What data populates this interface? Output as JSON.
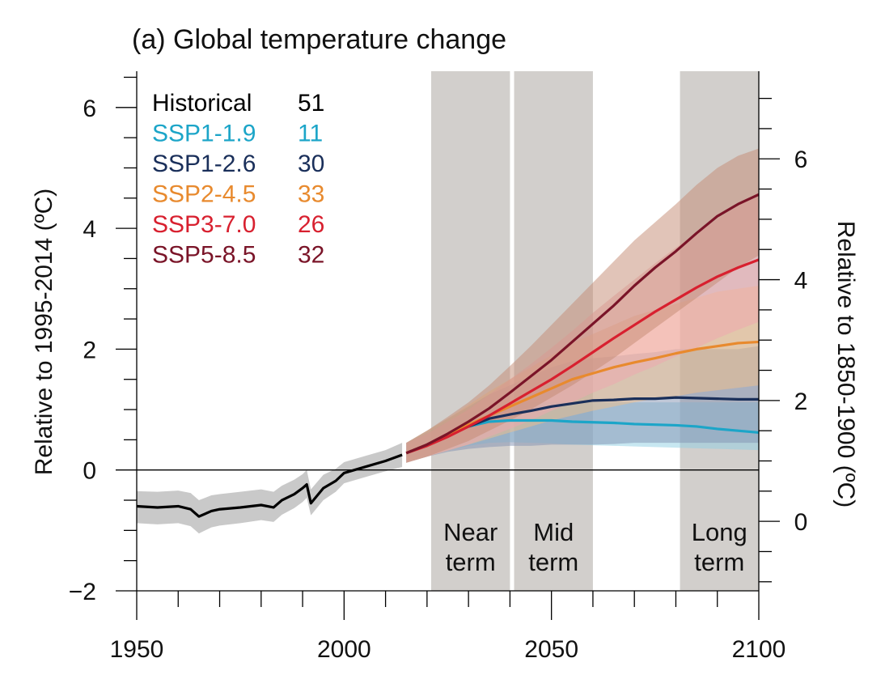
{
  "chart_data": {
    "type": "line",
    "title": "(a) Global temperature change",
    "xlim": [
      1950,
      2100
    ],
    "x_ticks": [
      "1950",
      "2000",
      "2050",
      "2100"
    ],
    "left_axis": {
      "label": "Relative to 1995-2014 (ºC)",
      "ylim": [
        -2,
        6.6
      ],
      "ticks": [
        "−2",
        "0",
        "2",
        "4",
        "6"
      ]
    },
    "right_axis": {
      "label": "Relative to 1850-1900 (ºC)",
      "offset_c": 0.85,
      "ticks": [
        "0",
        "2",
        "4",
        "6"
      ]
    },
    "zero_line": true,
    "periods": [
      {
        "name": "Near term",
        "line1": "Near",
        "line2": "term",
        "x": [
          2021,
          2040
        ]
      },
      {
        "name": "Mid term",
        "line1": "Mid",
        "line2": "term",
        "x": [
          2041,
          2060
        ]
      },
      {
        "name": "Long term",
        "line1": "Long",
        "line2": "term",
        "x": [
          2081,
          2100
        ]
      }
    ],
    "legend": {
      "placement": "top-left",
      "entries": [
        {
          "name": "Historical",
          "count": "51",
          "color": "#000000"
        },
        {
          "name": "SSP1-1.9",
          "count": "11",
          "color": "#1ca5c8"
        },
        {
          "name": "SSP1-2.6",
          "count": "30",
          "color": "#1a2f5a"
        },
        {
          "name": "SSP2-4.5",
          "count": "33",
          "color": "#e88a2e"
        },
        {
          "name": "SSP3-7.0",
          "count": "26",
          "color": "#d8202f"
        },
        {
          "name": "SSP5-8.5",
          "count": "32",
          "color": "#7a1428"
        }
      ]
    },
    "series": [
      {
        "name": "Historical",
        "color": "#000000",
        "band_color": "#c9c9c9",
        "x": [
          1950,
          1955,
          1960,
          1963,
          1965,
          1968,
          1970,
          1975,
          1980,
          1983,
          1985,
          1988,
          1990,
          1991,
          1992,
          1995,
          1998,
          2000,
          2005,
          2010,
          2014
        ],
        "values": [
          -0.6,
          -0.62,
          -0.6,
          -0.65,
          -0.77,
          -0.68,
          -0.65,
          -0.62,
          -0.58,
          -0.62,
          -0.5,
          -0.4,
          -0.3,
          -0.24,
          -0.55,
          -0.3,
          -0.18,
          -0.05,
          0.05,
          0.15,
          0.25
        ],
        "low": [
          -0.88,
          -0.9,
          -0.88,
          -0.93,
          -1.05,
          -0.95,
          -0.92,
          -0.88,
          -0.83,
          -0.86,
          -0.74,
          -0.63,
          -0.53,
          -0.46,
          -0.75,
          -0.5,
          -0.36,
          -0.22,
          -0.12,
          -0.02,
          0.05
        ],
        "high": [
          -0.35,
          -0.36,
          -0.34,
          -0.38,
          -0.5,
          -0.42,
          -0.4,
          -0.36,
          -0.32,
          -0.36,
          -0.26,
          -0.16,
          -0.07,
          0.0,
          -0.32,
          -0.08,
          0.02,
          0.13,
          0.23,
          0.33,
          0.45
        ]
      },
      {
        "name": "SSP1-1.9",
        "color": "#1ca5c8",
        "band_color": "#8fd0e4",
        "x": [
          2015,
          2020,
          2025,
          2030,
          2035,
          2040,
          2045,
          2050,
          2055,
          2060,
          2065,
          2070,
          2075,
          2080,
          2085,
          2090,
          2095,
          2100
        ],
        "values": [
          0.28,
          0.42,
          0.58,
          0.72,
          0.8,
          0.82,
          0.82,
          0.82,
          0.8,
          0.79,
          0.78,
          0.76,
          0.75,
          0.74,
          0.72,
          0.68,
          0.65,
          0.62
        ],
        "low": [
          0.12,
          0.22,
          0.32,
          0.4,
          0.45,
          0.46,
          0.45,
          0.44,
          0.42,
          0.41,
          0.4,
          0.39,
          0.38,
          0.37,
          0.36,
          0.35,
          0.34,
          0.33
        ],
        "high": [
          0.45,
          0.62,
          0.8,
          0.95,
          1.05,
          1.1,
          1.12,
          1.12,
          1.12,
          1.12,
          1.12,
          1.12,
          1.12,
          1.12,
          1.12,
          1.12,
          1.12,
          1.12
        ]
      },
      {
        "name": "SSP1-2.6",
        "color": "#1a2f5a",
        "band_color": "#8191b2",
        "x": [
          2015,
          2020,
          2025,
          2030,
          2035,
          2040,
          2045,
          2050,
          2055,
          2060,
          2065,
          2070,
          2075,
          2080,
          2085,
          2090,
          2095,
          2100
        ],
        "values": [
          0.28,
          0.42,
          0.58,
          0.72,
          0.85,
          0.92,
          0.98,
          1.05,
          1.1,
          1.15,
          1.16,
          1.18,
          1.18,
          1.2,
          1.19,
          1.18,
          1.17,
          1.17
        ],
        "low": [
          0.12,
          0.22,
          0.3,
          0.35,
          0.38,
          0.4,
          0.4,
          0.42,
          0.42,
          0.42,
          0.43,
          0.45,
          0.45,
          0.45,
          0.45,
          0.45,
          0.45,
          0.45
        ],
        "high": [
          0.45,
          0.65,
          0.85,
          1.05,
          1.25,
          1.4,
          1.55,
          1.7,
          1.8,
          1.85,
          1.88,
          1.92,
          1.95,
          2.0,
          2.0,
          2.0,
          2.0,
          2.05
        ]
      },
      {
        "name": "SSP2-4.5",
        "color": "#e88a2e",
        "band_color": "#f2bf8a",
        "x": [
          2015,
          2020,
          2025,
          2030,
          2035,
          2040,
          2045,
          2050,
          2055,
          2060,
          2065,
          2070,
          2075,
          2080,
          2085,
          2090,
          2095,
          2100
        ],
        "values": [
          0.28,
          0.42,
          0.58,
          0.75,
          0.9,
          1.05,
          1.2,
          1.35,
          1.5,
          1.6,
          1.7,
          1.78,
          1.85,
          1.93,
          2.0,
          2.05,
          2.1,
          2.12
        ],
        "low": [
          0.12,
          0.22,
          0.32,
          0.42,
          0.52,
          0.62,
          0.72,
          0.82,
          0.9,
          0.98,
          1.05,
          1.12,
          1.18,
          1.22,
          1.28,
          1.32,
          1.36,
          1.4
        ],
        "high": [
          0.45,
          0.65,
          0.85,
          1.08,
          1.3,
          1.5,
          1.7,
          1.9,
          2.1,
          2.25,
          2.4,
          2.55,
          2.65,
          2.75,
          2.85,
          2.95,
          3.0,
          3.05
        ]
      },
      {
        "name": "SSP3-7.0",
        "color": "#d8202f",
        "band_color": "#f0a6b0",
        "x": [
          2015,
          2020,
          2025,
          2030,
          2035,
          2040,
          2045,
          2050,
          2055,
          2060,
          2065,
          2070,
          2075,
          2080,
          2085,
          2090,
          2095,
          2100
        ],
        "values": [
          0.28,
          0.4,
          0.55,
          0.72,
          0.9,
          1.1,
          1.3,
          1.5,
          1.72,
          1.95,
          2.18,
          2.4,
          2.62,
          2.82,
          3.02,
          3.2,
          3.35,
          3.48
        ],
        "low": [
          0.12,
          0.22,
          0.32,
          0.42,
          0.55,
          0.68,
          0.82,
          0.98,
          1.12,
          1.28,
          1.42,
          1.58,
          1.72,
          1.88,
          2.02,
          2.18,
          2.32,
          2.45
        ],
        "high": [
          0.45,
          0.6,
          0.8,
          1.0,
          1.25,
          1.5,
          1.75,
          2.02,
          2.3,
          2.6,
          2.88,
          3.15,
          3.42,
          3.68,
          3.92,
          4.15,
          4.38,
          4.6
        ]
      },
      {
        "name": "SSP5-8.5",
        "color": "#7a1428",
        "band_color": "#c48a72",
        "x": [
          2015,
          2020,
          2025,
          2030,
          2035,
          2040,
          2045,
          2050,
          2055,
          2060,
          2065,
          2070,
          2075,
          2080,
          2085,
          2090,
          2095,
          2100
        ],
        "values": [
          0.28,
          0.42,
          0.6,
          0.8,
          1.02,
          1.28,
          1.55,
          1.82,
          2.12,
          2.42,
          2.72,
          3.05,
          3.35,
          3.62,
          3.92,
          4.2,
          4.4,
          4.56
        ],
        "low": [
          0.12,
          0.22,
          0.35,
          0.48,
          0.65,
          0.82,
          1.0,
          1.2,
          1.4,
          1.62,
          1.85,
          2.1,
          2.35,
          2.6,
          2.85,
          3.1,
          3.35,
          3.55
        ],
        "high": [
          0.45,
          0.65,
          0.88,
          1.12,
          1.4,
          1.72,
          2.05,
          2.4,
          2.75,
          3.1,
          3.45,
          3.8,
          4.1,
          4.4,
          4.72,
          5.0,
          5.2,
          5.32
        ]
      }
    ]
  }
}
